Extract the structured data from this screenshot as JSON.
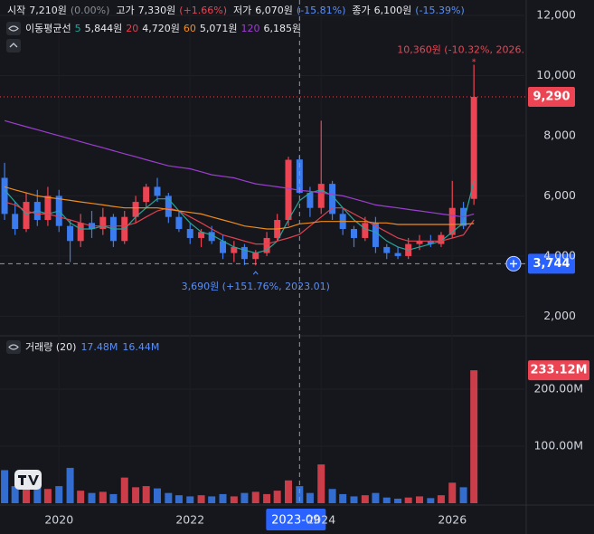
{
  "chart_data": [
    {
      "type": "candlestick",
      "ohlc_header": [
        {
          "label": "시작",
          "value": "7,210원",
          "change": "(0.00%)"
        },
        {
          "label": "고가",
          "value": "7,330원",
          "change": "(+1.66%)"
        },
        {
          "label": "저가",
          "value": "6,070원",
          "change": "(-15.81%)"
        },
        {
          "label": "종가",
          "value": "6,100원",
          "change": "(-15.39%)"
        }
      ],
      "ma_title": "이동평균선",
      "x": [
        2019.17,
        2019.33,
        2019.5,
        2019.67,
        2019.83,
        2020,
        2020.17,
        2020.33,
        2020.5,
        2020.67,
        2020.83,
        2021,
        2021.17,
        2021.33,
        2021.5,
        2021.67,
        2021.83,
        2022,
        2022.17,
        2022.33,
        2022.5,
        2022.67,
        2022.83,
        2023,
        2023.17,
        2023.33,
        2023.5,
        2023.67,
        2023.83,
        2024,
        2024.17,
        2024.33,
        2024.5,
        2024.67,
        2024.83,
        2025,
        2025.17,
        2025.33,
        2025.5,
        2025.67,
        2025.83,
        2026,
        2026.17,
        2026.33
      ],
      "open": [
        6600,
        5400,
        4900,
        5800,
        5200,
        6000,
        5000,
        4500,
        5100,
        4900,
        5300,
        4500,
        5300,
        5800,
        6300,
        6000,
        5300,
        4900,
        4600,
        4800,
        4500,
        4100,
        4300,
        3900,
        4100,
        4600,
        5200,
        7210,
        6100,
        5600,
        6400,
        5400,
        4900,
        4600,
        5100,
        4300,
        4100,
        4000,
        4400,
        4500,
        4400,
        4700,
        5600,
        5900
      ],
      "high": [
        7100,
        5800,
        6100,
        6200,
        6300,
        6200,
        5200,
        5400,
        5500,
        5600,
        5400,
        5500,
        6000,
        6400,
        6600,
        6100,
        5500,
        5100,
        4900,
        5000,
        4700,
        4500,
        4400,
        4200,
        4800,
        5400,
        7300,
        7330,
        6300,
        8500,
        6500,
        5600,
        5000,
        5300,
        5300,
        4400,
        4300,
        4600,
        4700,
        4700,
        4800,
        6500,
        5800,
        10360
      ],
      "low": [
        5200,
        4700,
        4800,
        5000,
        5000,
        4800,
        3800,
        4300,
        4600,
        4700,
        4300,
        4400,
        5100,
        5600,
        5800,
        5100,
        4800,
        4400,
        4300,
        4400,
        3900,
        3800,
        3700,
        3690,
        4000,
        4500,
        5000,
        6070,
        5300,
        5400,
        5200,
        4700,
        4300,
        4500,
        4100,
        3900,
        3900,
        3900,
        4200,
        4300,
        4300,
        4600,
        4900,
        5700
      ],
      "close": [
        5400,
        4900,
        5800,
        5200,
        6000,
        5000,
        4500,
        5100,
        4900,
        5300,
        4500,
        5300,
        5800,
        6300,
        6000,
        5300,
        4900,
        4600,
        4800,
        4500,
        4100,
        4300,
        3900,
        4100,
        4600,
        5200,
        7200,
        6100,
        5600,
        6400,
        5400,
        4900,
        4600,
        5100,
        4300,
        4100,
        4000,
        4400,
        4500,
        4400,
        4700,
        5600,
        5000,
        9290
      ],
      "up_color": "#ec4452",
      "down_color": "#3a7cf0",
      "series": [
        {
          "name": "5",
          "color": "#26a69a",
          "legend_value": "5,844원",
          "values": [
            6200,
            5800,
            5400,
            5500,
            5400,
            5500,
            5100,
            4900,
            4900,
            5000,
            4900,
            4900,
            5300,
            5600,
            5900,
            5900,
            5500,
            5100,
            4800,
            4700,
            4500,
            4300,
            4200,
            4100,
            4200,
            4500,
            5200,
            5844,
            6100,
            6200,
            6000,
            5600,
            5200,
            4900,
            4800,
            4500,
            4300,
            4200,
            4300,
            4400,
            4500,
            4800,
            5100,
            6500
          ]
        },
        {
          "name": "20",
          "color": "#e0414f",
          "legend_value": "4,720원",
          "values": [
            5800,
            5700,
            5500,
            5400,
            5400,
            5300,
            5200,
            5100,
            5000,
            5000,
            5000,
            5000,
            5100,
            5300,
            5500,
            5600,
            5500,
            5300,
            5100,
            4900,
            4700,
            4600,
            4500,
            4400,
            4400,
            4500,
            4600,
            4720,
            5000,
            5300,
            5600,
            5600,
            5400,
            5200,
            5000,
            4800,
            4600,
            4500,
            4500,
            4500,
            4500,
            4600,
            4700,
            5200
          ]
        },
        {
          "name": "60",
          "color": "#f08c1c",
          "legend_value": "5,071원",
          "values": [
            6300,
            6200,
            6100,
            6000,
            5950,
            5900,
            5850,
            5800,
            5750,
            5700,
            5650,
            5600,
            5600,
            5600,
            5600,
            5550,
            5500,
            5450,
            5400,
            5300,
            5200,
            5100,
            5000,
            4950,
            4900,
            4900,
            4950,
            5071,
            5100,
            5150,
            5150,
            5150,
            5150,
            5150,
            5100,
            5100,
            5050,
            5050,
            5050,
            5050,
            5050,
            5050,
            5060,
            5080
          ]
        },
        {
          "name": "120",
          "color": "#9c3fd0",
          "legend_value": "6,185원",
          "values": [
            8500,
            8400,
            8300,
            8200,
            8100,
            8000,
            7900,
            7800,
            7700,
            7600,
            7500,
            7400,
            7300,
            7200,
            7100,
            7000,
            6950,
            6900,
            6800,
            6700,
            6650,
            6600,
            6500,
            6400,
            6350,
            6300,
            6250,
            6185,
            6150,
            6100,
            6050,
            6000,
            5900,
            5800,
            5700,
            5650,
            5600,
            5550,
            5500,
            5450,
            5400,
            5350,
            5300,
            5400
          ]
        }
      ],
      "xlim": [
        2019.1,
        2027.1
      ],
      "ylim": [
        1380,
        12510
      ],
      "yticks": [
        {
          "value": 2000,
          "label": "2,000"
        },
        {
          "value": 4000,
          "label": "4,000"
        },
        {
          "value": 6000,
          "label": "6,000"
        },
        {
          "value": 8000,
          "label": "8,000"
        },
        {
          "value": 10000,
          "label": "10,000"
        },
        {
          "value": 12000,
          "label": "12,000"
        }
      ],
      "grid": true,
      "last_price": {
        "value": 9290,
        "label": "9,290"
      },
      "high_annotation": "10,360원 (-10.32%, 2026.",
      "low_annotation": "3,690원 (+151.76%, 2023.01)",
      "crosshair": {
        "x": {
          "value": 2023.67,
          "label": "2023-09"
        },
        "y": {
          "value": 3744,
          "label": "3,744"
        }
      }
    },
    {
      "type": "bar",
      "title": "거래량 (20)",
      "legend_values": [
        "17.48M",
        "16.44M"
      ],
      "x": [
        2019.17,
        2019.33,
        2019.5,
        2019.67,
        2019.83,
        2020,
        2020.17,
        2020.33,
        2020.5,
        2020.67,
        2020.83,
        2021,
        2021.17,
        2021.33,
        2021.5,
        2021.67,
        2021.83,
        2022,
        2022.17,
        2022.33,
        2022.5,
        2022.67,
        2022.83,
        2023,
        2023.17,
        2023.33,
        2023.5,
        2023.67,
        2023.83,
        2024,
        2024.17,
        2024.33,
        2024.5,
        2024.67,
        2024.83,
        2025,
        2025.17,
        2025.33,
        2025.5,
        2025.67,
        2025.83,
        2026,
        2026.17,
        2026.33
      ],
      "values": [
        58000000,
        30000000,
        35000000,
        28000000,
        25000000,
        30000000,
        62000000,
        22000000,
        18000000,
        20000000,
        16000000,
        45000000,
        28000000,
        30000000,
        26000000,
        18000000,
        14000000,
        12000000,
        14000000,
        12000000,
        16000000,
        12000000,
        18000000,
        20000000,
        16000000,
        22000000,
        40000000,
        30000000,
        18000000,
        68000000,
        25000000,
        16000000,
        12000000,
        14000000,
        18000000,
        10000000,
        8000000,
        10000000,
        12000000,
        9000000,
        14000000,
        36000000,
        28000000,
        233120000
      ],
      "xlim": [
        2019.1,
        2027.1
      ],
      "ylim": [
        0,
        292000000
      ],
      "yticks": [
        {
          "value": 100000000,
          "label": "100.00M"
        },
        {
          "value": 200000000,
          "label": "200.00M"
        }
      ],
      "xticks": [
        2020,
        2022,
        2024,
        2026
      ],
      "last_value": {
        "value": 233120000,
        "label": "233.12M"
      }
    }
  ]
}
